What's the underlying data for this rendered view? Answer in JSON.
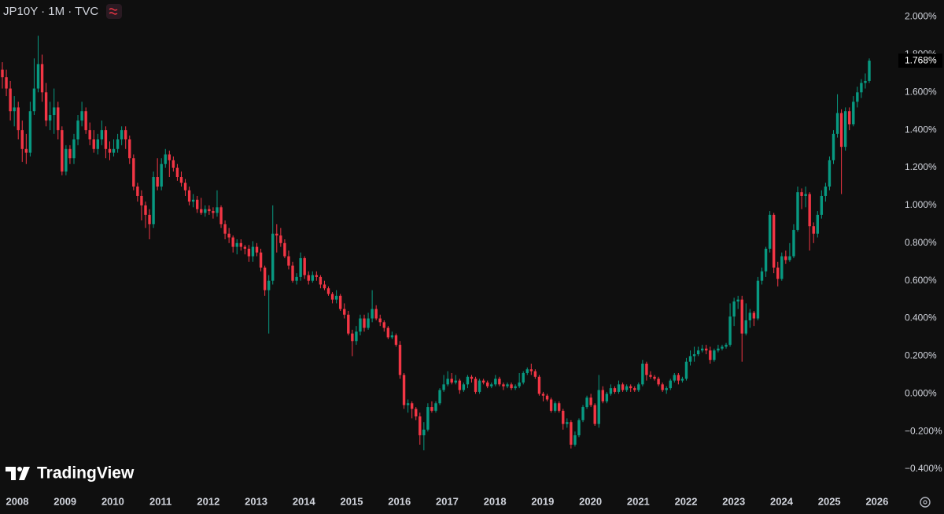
{
  "chart_data": {
    "type": "candlestick",
    "title": "JP10Y · 1M · TVC",
    "up_color": "#089981",
    "down_color": "#f23645",
    "ylim": [
      -0.5,
      2.09
    ],
    "yticks": [
      {
        "value": -0.4,
        "label": "−0.400%"
      },
      {
        "value": -0.2,
        "label": "−0.200%"
      },
      {
        "value": 0,
        "label": "0.000%"
      },
      {
        "value": 0.2,
        "label": "0.200%"
      },
      {
        "value": 0.4,
        "label": "0.400%"
      },
      {
        "value": 0.6,
        "label": "0.600%"
      },
      {
        "value": 0.8,
        "label": "0.800%"
      },
      {
        "value": 1.0,
        "label": "1.000%"
      },
      {
        "value": 1.2,
        "label": "1.200%"
      },
      {
        "value": 1.4,
        "label": "1.400%"
      },
      {
        "value": 1.6,
        "label": "1.600%"
      },
      {
        "value": 1.8,
        "label": "1.800%"
      },
      {
        "value": 2.0,
        "label": "2.000%"
      }
    ],
    "xlim": [
      2007.638,
      2026.413
    ],
    "xticks": [
      2008,
      2009,
      2010,
      2011,
      2012,
      2013,
      2014,
      2015,
      2016,
      2017,
      2018,
      2019,
      2020,
      2021,
      2022,
      2023,
      2024,
      2025,
      2026
    ],
    "last_price": {
      "value": 1.768,
      "label": "1.768%"
    },
    "ohlc": [
      [
        1.72,
        1.76,
        1.62,
        1.68
      ],
      [
        1.68,
        1.72,
        1.58,
        1.62
      ],
      [
        1.62,
        1.66,
        1.45,
        1.5
      ],
      [
        1.5,
        1.58,
        1.42,
        1.52
      ],
      [
        1.52,
        1.55,
        1.35,
        1.4
      ],
      [
        1.4,
        1.45,
        1.23,
        1.3
      ],
      [
        1.3,
        1.38,
        1.22,
        1.28
      ],
      [
        1.28,
        1.55,
        1.26,
        1.5
      ],
      [
        1.5,
        1.78,
        1.48,
        1.62
      ],
      [
        1.62,
        1.9,
        1.6,
        1.75
      ],
      [
        1.75,
        1.8,
        1.55,
        1.6
      ],
      [
        1.6,
        1.65,
        1.42,
        1.45
      ],
      [
        1.45,
        1.55,
        1.4,
        1.48
      ],
      [
        1.48,
        1.62,
        1.38,
        1.52
      ],
      [
        1.52,
        1.55,
        1.35,
        1.4
      ],
      [
        1.4,
        1.42,
        1.16,
        1.18
      ],
      [
        1.18,
        1.32,
        1.16,
        1.3
      ],
      [
        1.3,
        1.32,
        1.22,
        1.25
      ],
      [
        1.25,
        1.38,
        1.22,
        1.35
      ],
      [
        1.35,
        1.48,
        1.32,
        1.45
      ],
      [
        1.45,
        1.55,
        1.42,
        1.5
      ],
      [
        1.5,
        1.52,
        1.38,
        1.4
      ],
      [
        1.4,
        1.44,
        1.32,
        1.35
      ],
      [
        1.35,
        1.4,
        1.28,
        1.3
      ],
      [
        1.3,
        1.38,
        1.27,
        1.35
      ],
      [
        1.35,
        1.45,
        1.32,
        1.4
      ],
      [
        1.4,
        1.42,
        1.25,
        1.3
      ],
      [
        1.3,
        1.34,
        1.24,
        1.28
      ],
      [
        1.28,
        1.35,
        1.26,
        1.3
      ],
      [
        1.3,
        1.38,
        1.28,
        1.35
      ],
      [
        1.35,
        1.42,
        1.32,
        1.4
      ],
      [
        1.4,
        1.42,
        1.3,
        1.35
      ],
      [
        1.35,
        1.37,
        1.22,
        1.25
      ],
      [
        1.25,
        1.27,
        1.08,
        1.1
      ],
      [
        1.1,
        1.12,
        1.02,
        1.05
      ],
      [
        1.05,
        1.08,
        0.92,
        1.0
      ],
      [
        1.0,
        1.02,
        0.88,
        0.95
      ],
      [
        0.95,
        0.98,
        0.82,
        0.9
      ],
      [
        0.9,
        1.18,
        0.88,
        1.15
      ],
      [
        1.15,
        1.25,
        1.08,
        1.1
      ],
      [
        1.1,
        1.25,
        1.08,
        1.22
      ],
      [
        1.22,
        1.3,
        1.2,
        1.27
      ],
      [
        1.27,
        1.29,
        1.15,
        1.24
      ],
      [
        1.24,
        1.26,
        1.18,
        1.2
      ],
      [
        1.2,
        1.22,
        1.13,
        1.15
      ],
      [
        1.15,
        1.18,
        1.1,
        1.12
      ],
      [
        1.12,
        1.14,
        1.05,
        1.08
      ],
      [
        1.08,
        1.1,
        1.0,
        1.02
      ],
      [
        1.02,
        1.06,
        0.99,
        1.03
      ],
      [
        1.03,
        1.05,
        0.96,
        0.98
      ],
      [
        0.98,
        1.04,
        0.95,
        0.96
      ],
      [
        0.96,
        1.0,
        0.94,
        0.98
      ],
      [
        0.98,
        1.0,
        0.95,
        0.97
      ],
      [
        0.97,
        0.99,
        0.93,
        0.96
      ],
      [
        0.96,
        1.08,
        0.94,
        0.99
      ],
      [
        0.99,
        1.0,
        0.88,
        0.9
      ],
      [
        0.9,
        0.92,
        0.82,
        0.85
      ],
      [
        0.85,
        0.88,
        0.8,
        0.83
      ],
      [
        0.83,
        0.84,
        0.75,
        0.78
      ],
      [
        0.78,
        0.82,
        0.74,
        0.8
      ],
      [
        0.8,
        0.82,
        0.76,
        0.78
      ],
      [
        0.78,
        0.79,
        0.74,
        0.77
      ],
      [
        0.77,
        0.79,
        0.7,
        0.73
      ],
      [
        0.73,
        0.81,
        0.7,
        0.78
      ],
      [
        0.78,
        0.8,
        0.73,
        0.75
      ],
      [
        0.75,
        0.77,
        0.65,
        0.67
      ],
      [
        0.67,
        0.68,
        0.52,
        0.55
      ],
      [
        0.55,
        0.63,
        0.32,
        0.6
      ],
      [
        0.6,
        1.0,
        0.58,
        0.85
      ],
      [
        0.85,
        0.9,
        0.75,
        0.84
      ],
      [
        0.84,
        0.88,
        0.78,
        0.8
      ],
      [
        0.8,
        0.82,
        0.72,
        0.73
      ],
      [
        0.73,
        0.76,
        0.66,
        0.68
      ],
      [
        0.68,
        0.7,
        0.59,
        0.6
      ],
      [
        0.6,
        0.64,
        0.58,
        0.62
      ],
      [
        0.62,
        0.75,
        0.6,
        0.72
      ],
      [
        0.72,
        0.73,
        0.61,
        0.63
      ],
      [
        0.63,
        0.65,
        0.58,
        0.6
      ],
      [
        0.6,
        0.65,
        0.59,
        0.63
      ],
      [
        0.63,
        0.65,
        0.6,
        0.62
      ],
      [
        0.62,
        0.63,
        0.56,
        0.58
      ],
      [
        0.58,
        0.6,
        0.55,
        0.56
      ],
      [
        0.56,
        0.57,
        0.52,
        0.53
      ],
      [
        0.53,
        0.54,
        0.48,
        0.5
      ],
      [
        0.5,
        0.55,
        0.48,
        0.52
      ],
      [
        0.52,
        0.53,
        0.44,
        0.45
      ],
      [
        0.45,
        0.48,
        0.4,
        0.42
      ],
      [
        0.42,
        0.44,
        0.31,
        0.32
      ],
      [
        0.32,
        0.34,
        0.2,
        0.28
      ],
      [
        0.28,
        0.36,
        0.26,
        0.33
      ],
      [
        0.33,
        0.42,
        0.31,
        0.4
      ],
      [
        0.4,
        0.42,
        0.33,
        0.35
      ],
      [
        0.35,
        0.43,
        0.34,
        0.4
      ],
      [
        0.4,
        0.55,
        0.38,
        0.45
      ],
      [
        0.45,
        0.47,
        0.39,
        0.4
      ],
      [
        0.4,
        0.42,
        0.36,
        0.38
      ],
      [
        0.38,
        0.39,
        0.33,
        0.35
      ],
      [
        0.35,
        0.36,
        0.29,
        0.3
      ],
      [
        0.3,
        0.33,
        0.29,
        0.31
      ],
      [
        0.31,
        0.32,
        0.25,
        0.26
      ],
      [
        0.26,
        0.28,
        0.08,
        0.1
      ],
      [
        0.1,
        0.11,
        -0.08,
        -0.06
      ],
      [
        -0.06,
        -0.03,
        -0.1,
        -0.05
      ],
      [
        -0.05,
        -0.04,
        -0.13,
        -0.08
      ],
      [
        -0.08,
        -0.07,
        -0.14,
        -0.12
      ],
      [
        -0.12,
        -0.1,
        -0.27,
        -0.22
      ],
      [
        -0.22,
        -0.15,
        -0.3,
        -0.19
      ],
      [
        -0.19,
        -0.05,
        -0.2,
        -0.07
      ],
      [
        -0.07,
        -0.04,
        -0.1,
        -0.09
      ],
      [
        -0.09,
        -0.04,
        -0.1,
        -0.05
      ],
      [
        -0.05,
        0.03,
        -0.06,
        0.02
      ],
      [
        0.02,
        0.1,
        0.01,
        0.05
      ],
      [
        0.05,
        0.12,
        0.04,
        0.08
      ],
      [
        0.08,
        0.11,
        0.05,
        0.06
      ],
      [
        0.06,
        0.1,
        0.05,
        0.07
      ],
      [
        0.07,
        0.08,
        0.0,
        0.02
      ],
      [
        0.02,
        0.06,
        0.01,
        0.05
      ],
      [
        0.05,
        0.1,
        0.03,
        0.09
      ],
      [
        0.09,
        0.1,
        0.06,
        0.08
      ],
      [
        0.08,
        0.09,
        0.0,
        0.01
      ],
      [
        0.01,
        0.08,
        0.0,
        0.07
      ],
      [
        0.07,
        0.08,
        0.05,
        0.06
      ],
      [
        0.06,
        0.07,
        0.03,
        0.04
      ],
      [
        0.04,
        0.06,
        0.03,
        0.05
      ],
      [
        0.05,
        0.1,
        0.04,
        0.08
      ],
      [
        0.08,
        0.09,
        0.04,
        0.05
      ],
      [
        0.05,
        0.06,
        0.02,
        0.04
      ],
      [
        0.04,
        0.06,
        0.03,
        0.05
      ],
      [
        0.05,
        0.06,
        0.02,
        0.03
      ],
      [
        0.03,
        0.05,
        0.02,
        0.04
      ],
      [
        0.04,
        0.11,
        0.03,
        0.06
      ],
      [
        0.06,
        0.12,
        0.05,
        0.11
      ],
      [
        0.11,
        0.14,
        0.1,
        0.13
      ],
      [
        0.13,
        0.16,
        0.1,
        0.12
      ],
      [
        0.12,
        0.13,
        0.08,
        0.09
      ],
      [
        0.09,
        0.1,
        -0.01,
        0.0
      ],
      [
        0.0,
        0.01,
        -0.04,
        -0.01
      ],
      [
        -0.01,
        0.0,
        -0.04,
        -0.03
      ],
      [
        -0.03,
        -0.02,
        -0.1,
        -0.09
      ],
      [
        -0.09,
        -0.04,
        -0.1,
        -0.05
      ],
      [
        -0.05,
        -0.04,
        -0.1,
        -0.09
      ],
      [
        -0.09,
        -0.08,
        -0.19,
        -0.16
      ],
      [
        -0.16,
        -0.13,
        -0.18,
        -0.15
      ],
      [
        -0.15,
        -0.14,
        -0.29,
        -0.27
      ],
      [
        -0.27,
        -0.2,
        -0.28,
        -0.22
      ],
      [
        -0.22,
        -0.13,
        -0.23,
        -0.14
      ],
      [
        -0.14,
        -0.06,
        -0.15,
        -0.07
      ],
      [
        -0.07,
        -0.01,
        -0.08,
        -0.02
      ],
      [
        -0.02,
        0.0,
        -0.07,
        -0.06
      ],
      [
        -0.06,
        -0.05,
        -0.17,
        -0.16
      ],
      [
        -0.16,
        0.1,
        -0.18,
        0.02
      ],
      [
        0.02,
        0.04,
        -0.05,
        -0.04
      ],
      [
        -0.04,
        0.01,
        -0.05,
        0.0
      ],
      [
        0.0,
        0.05,
        -0.01,
        0.03
      ],
      [
        0.03,
        0.04,
        0.0,
        0.01
      ],
      [
        0.01,
        0.07,
        0.0,
        0.05
      ],
      [
        0.05,
        0.06,
        0.01,
        0.02
      ],
      [
        0.02,
        0.05,
        0.01,
        0.04
      ],
      [
        0.04,
        0.05,
        0.01,
        0.03
      ],
      [
        0.03,
        0.04,
        0.01,
        0.02
      ],
      [
        0.02,
        0.06,
        0.01,
        0.05
      ],
      [
        0.05,
        0.18,
        0.04,
        0.16
      ],
      [
        0.16,
        0.17,
        0.07,
        0.1
      ],
      [
        0.1,
        0.12,
        0.08,
        0.09
      ],
      [
        0.09,
        0.1,
        0.07,
        0.08
      ],
      [
        0.08,
        0.09,
        0.04,
        0.05
      ],
      [
        0.05,
        0.06,
        0.01,
        0.02
      ],
      [
        0.02,
        0.04,
        0.0,
        0.03
      ],
      [
        0.03,
        0.08,
        0.02,
        0.07
      ],
      [
        0.07,
        0.11,
        0.06,
        0.1
      ],
      [
        0.1,
        0.11,
        0.05,
        0.07
      ],
      [
        0.07,
        0.09,
        0.06,
        0.08
      ],
      [
        0.08,
        0.19,
        0.07,
        0.17
      ],
      [
        0.17,
        0.23,
        0.15,
        0.2
      ],
      [
        0.2,
        0.25,
        0.17,
        0.21
      ],
      [
        0.21,
        0.25,
        0.2,
        0.23
      ],
      [
        0.23,
        0.26,
        0.22,
        0.24
      ],
      [
        0.24,
        0.26,
        0.21,
        0.23
      ],
      [
        0.23,
        0.25,
        0.16,
        0.18
      ],
      [
        0.18,
        0.24,
        0.17,
        0.23
      ],
      [
        0.23,
        0.26,
        0.22,
        0.24
      ],
      [
        0.24,
        0.26,
        0.23,
        0.25
      ],
      [
        0.25,
        0.27,
        0.24,
        0.26
      ],
      [
        0.26,
        0.48,
        0.25,
        0.41
      ],
      [
        0.41,
        0.51,
        0.36,
        0.49
      ],
      [
        0.49,
        0.52,
        0.45,
        0.5
      ],
      [
        0.5,
        0.52,
        0.17,
        0.32
      ],
      [
        0.32,
        0.48,
        0.31,
        0.39
      ],
      [
        0.39,
        0.45,
        0.35,
        0.43
      ],
      [
        0.43,
        0.44,
        0.36,
        0.4
      ],
      [
        0.4,
        0.62,
        0.39,
        0.6
      ],
      [
        0.6,
        0.67,
        0.58,
        0.65
      ],
      [
        0.65,
        0.78,
        0.62,
        0.77
      ],
      [
        0.77,
        0.97,
        0.75,
        0.95
      ],
      [
        0.95,
        0.96,
        0.64,
        0.67
      ],
      [
        0.67,
        0.7,
        0.57,
        0.61
      ],
      [
        0.61,
        0.75,
        0.6,
        0.73
      ],
      [
        0.73,
        0.76,
        0.69,
        0.71
      ],
      [
        0.71,
        0.8,
        0.7,
        0.73
      ],
      [
        0.73,
        0.9,
        0.72,
        0.87
      ],
      [
        0.87,
        1.1,
        0.86,
        1.07
      ],
      [
        1.07,
        1.09,
        0.98,
        1.05
      ],
      [
        1.05,
        1.1,
        0.99,
        1.06
      ],
      [
        1.06,
        1.07,
        0.76,
        0.89
      ],
      [
        0.89,
        0.91,
        0.8,
        0.85
      ],
      [
        0.85,
        0.97,
        0.83,
        0.95
      ],
      [
        0.95,
        1.08,
        0.93,
        1.05
      ],
      [
        1.05,
        1.12,
        1.02,
        1.1
      ],
      [
        1.1,
        1.26,
        1.08,
        1.24
      ],
      [
        1.24,
        1.4,
        1.22,
        1.38
      ],
      [
        1.38,
        1.59,
        1.36,
        1.49
      ],
      [
        1.49,
        1.51,
        1.06,
        1.31
      ],
      [
        1.31,
        1.52,
        1.29,
        1.5
      ],
      [
        1.5,
        1.52,
        1.4,
        1.43
      ],
      [
        1.43,
        1.58,
        1.42,
        1.55
      ],
      [
        1.55,
        1.63,
        1.52,
        1.6
      ],
      [
        1.6,
        1.67,
        1.57,
        1.65
      ],
      [
        1.65,
        1.7,
        1.62,
        1.66
      ],
      [
        1.66,
        1.78,
        1.65,
        1.768
      ]
    ]
  },
  "branding": {
    "logo": "TradingView"
  }
}
